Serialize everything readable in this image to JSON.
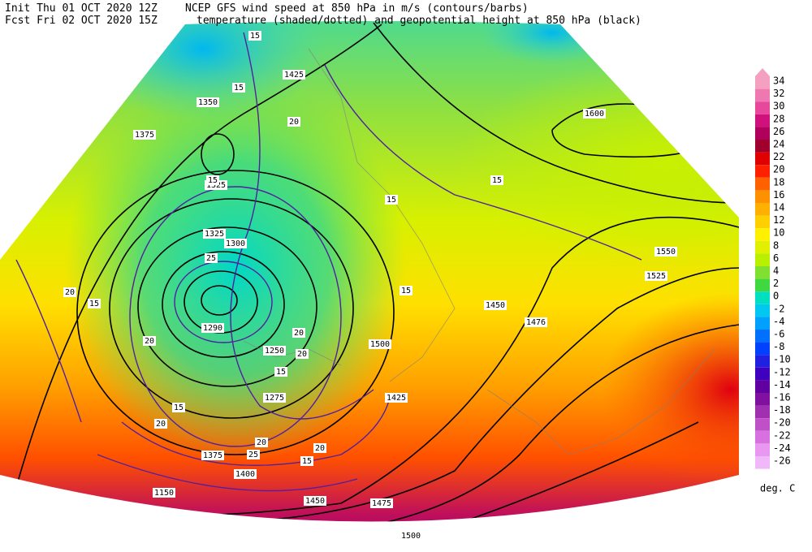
{
  "header": {
    "init": "Init  Thu 01 OCT 2020 12Z",
    "fcst": "Fcst Fri 02 OCT 2020 15Z",
    "line1": "NCEP GFS wind speed at 850 hPa in m/s (contours/barbs)",
    "line2": "temperature (shaded/dotted) and geopotential height at 850 hPa (black)"
  },
  "colorbar": {
    "levels": [
      34,
      32,
      30,
      28,
      26,
      24,
      22,
      20,
      18,
      16,
      14,
      12,
      10,
      8,
      6,
      4,
      2,
      0,
      -2,
      -4,
      -6,
      -8,
      -10,
      -12,
      -14,
      -16,
      -18,
      -20,
      -22,
      -24,
      -26
    ],
    "colors": [
      "#f4a0c0",
      "#f078b0",
      "#e8489c",
      "#d0107c",
      "#b0005c",
      "#a0002c",
      "#e00000",
      "#ff2000",
      "#ff6000",
      "#ff9000",
      "#ffb000",
      "#ffd000",
      "#fff000",
      "#e0f000",
      "#b8f000",
      "#80e030",
      "#40d840",
      "#00e0c0",
      "#00c8f0",
      "#00a0ff",
      "#0070ff",
      "#0040ff",
      "#2020e0",
      "#4000c0",
      "#6000a0",
      "#8010a0",
      "#a030b0",
      "#c050c8",
      "#d870e0",
      "#e898f0",
      "#f0b8f8"
    ],
    "unit": "deg. C"
  },
  "map": {
    "height_labels": [
      "1425",
      "1350",
      "1375",
      "1325",
      "1300",
      "1290",
      "1250",
      "1275",
      "1450",
      "1476",
      "1500",
      "1525",
      "1550",
      "1600",
      "1425",
      "1450",
      "1475",
      "1500",
      "1150",
      "1400",
      "1375",
      "1325"
    ],
    "wind_labels": [
      "15",
      "15",
      "20",
      "15",
      "15",
      "15",
      "20",
      "15",
      "20",
      "25",
      "20",
      "20",
      "15",
      "15",
      "20",
      "15",
      "15",
      "20",
      "20",
      "25"
    ]
  }
}
